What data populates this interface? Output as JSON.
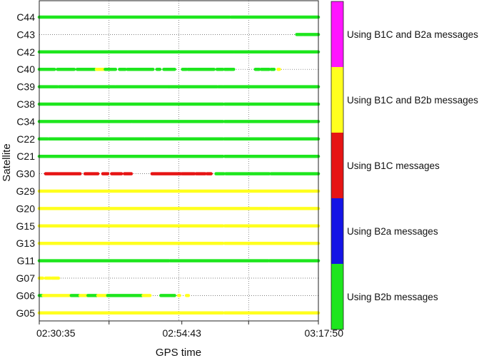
{
  "chart_data": {
    "type": "scatter",
    "xlabel": "GPS time",
    "ylabel": "Satellite",
    "x_ticks": [
      "02:30:35",
      "02:54:43",
      "03:17:50"
    ],
    "xlim": [
      "02:30:35",
      "03:17:50"
    ],
    "satellites": [
      "C44",
      "C43",
      "C42",
      "C40",
      "C39",
      "C38",
      "C34",
      "C22",
      "C21",
      "G30",
      "G29",
      "G20",
      "G15",
      "G13",
      "G11",
      "G07",
      "G06",
      "G05"
    ],
    "grid": "dotted horizontal at each satellite, dotted vertical at intermediate times",
    "colors": {
      "B2b": "#1ee61e",
      "B2a": "#1414e6",
      "B1C": "#e61414",
      "B1C_B2b": "#ffff1e",
      "B1C_B2a": "#ff14ff"
    },
    "legend": [
      {
        "label": "Using B1C and B2a messages",
        "color": "#ff14ff"
      },
      {
        "label": "Using B1C and B2b messages",
        "color": "#ffff1e"
      },
      {
        "label": "Using B1C messages",
        "color": "#e61414"
      },
      {
        "label": "Using B2a messages",
        "color": "#1414e6"
      },
      {
        "label": "Using B2b messages",
        "color": "#1ee61e"
      }
    ],
    "series": [
      {
        "sat": "C44",
        "segments": [
          {
            "start": "02:30:35",
            "end": "02:53:30",
            "mode": "B2b"
          },
          {
            "start": "02:53:35",
            "end": "03:02:50",
            "mode": "B2b"
          },
          {
            "start": "03:03:05",
            "end": "03:17:50",
            "mode": "B2b"
          }
        ]
      },
      {
        "sat": "C43",
        "segments": [
          {
            "start": "03:14:10",
            "end": "03:15:10",
            "mode": "B2b"
          },
          {
            "start": "03:15:20",
            "end": "03:17:50",
            "mode": "B2b"
          }
        ]
      },
      {
        "sat": "C42",
        "segments": [
          {
            "start": "02:30:35",
            "end": "02:34:30",
            "mode": "B2b"
          },
          {
            "start": "02:34:35",
            "end": "02:36:50",
            "mode": "B2b"
          },
          {
            "start": "02:37:00",
            "end": "02:45:30",
            "mode": "B2b"
          },
          {
            "start": "02:45:40",
            "end": "02:53:30",
            "mode": "B2b"
          },
          {
            "start": "02:53:40",
            "end": "03:03:30",
            "mode": "B2b"
          },
          {
            "start": "03:03:40",
            "end": "03:09:30",
            "mode": "B2b"
          },
          {
            "start": "03:09:40",
            "end": "03:17:50",
            "mode": "B2b"
          }
        ]
      },
      {
        "sat": "C40",
        "segments": [
          {
            "start": "02:30:35",
            "end": "02:33:10",
            "mode": "B2b"
          },
          {
            "start": "02:33:40",
            "end": "02:36:30",
            "mode": "B2b"
          },
          {
            "start": "02:37:00",
            "end": "02:40:00",
            "mode": "B2b"
          },
          {
            "start": "02:40:15",
            "end": "02:41:40",
            "mode": "B1C_B2b"
          },
          {
            "start": "02:41:45",
            "end": "02:43:30",
            "mode": "B2b"
          },
          {
            "start": "02:44:10",
            "end": "02:45:10",
            "mode": "B2b"
          },
          {
            "start": "02:45:30",
            "end": "02:49:50",
            "mode": "B2b"
          },
          {
            "start": "02:50:30",
            "end": "02:51:00",
            "mode": "B2b"
          },
          {
            "start": "02:51:40",
            "end": "02:53:30",
            "mode": "B2b"
          },
          {
            "start": "02:54:50",
            "end": "02:55:30",
            "mode": "B2b"
          },
          {
            "start": "02:55:45",
            "end": "03:00:10",
            "mode": "B2b"
          },
          {
            "start": "03:00:40",
            "end": "03:01:40",
            "mode": "B2b"
          },
          {
            "start": "03:02:00",
            "end": "03:02:40",
            "mode": "B2b"
          },
          {
            "start": "03:02:50",
            "end": "03:03:30",
            "mode": "B2b"
          },
          {
            "start": "03:07:10",
            "end": "03:07:50",
            "mode": "B2b"
          },
          {
            "start": "03:08:10",
            "end": "03:09:30",
            "mode": "B2b"
          },
          {
            "start": "03:09:50",
            "end": "03:10:20",
            "mode": "B2b"
          },
          {
            "start": "03:11:00",
            "end": "03:11:15",
            "mode": "B1C_B2b"
          }
        ]
      },
      {
        "sat": "C39",
        "segments": [
          {
            "start": "02:30:35",
            "end": "02:33:40",
            "mode": "B2b"
          },
          {
            "start": "02:33:55",
            "end": "02:36:20",
            "mode": "B2b"
          },
          {
            "start": "02:36:30",
            "end": "02:43:20",
            "mode": "B2b"
          },
          {
            "start": "02:43:30",
            "end": "02:52:30",
            "mode": "B2b"
          },
          {
            "start": "02:52:35",
            "end": "02:53:50",
            "mode": "B2b"
          },
          {
            "start": "02:54:00",
            "end": "03:00:40",
            "mode": "B2b"
          },
          {
            "start": "03:00:55",
            "end": "03:01:40",
            "mode": "B2b"
          },
          {
            "start": "03:01:50",
            "end": "03:17:50",
            "mode": "B2b"
          }
        ]
      },
      {
        "sat": "C38",
        "segments": [
          {
            "start": "02:30:35",
            "end": "03:01:40",
            "mode": "B2b"
          },
          {
            "start": "03:02:00",
            "end": "03:17:50",
            "mode": "B2b"
          }
        ]
      },
      {
        "sat": "C34",
        "segments": [
          {
            "start": "02:30:35",
            "end": "02:46:10",
            "mode": "B2b"
          },
          {
            "start": "02:46:20",
            "end": "03:01:40",
            "mode": "B2b"
          },
          {
            "start": "03:02:00",
            "end": "03:17:50",
            "mode": "B2b"
          }
        ]
      },
      {
        "sat": "C22",
        "segments": [
          {
            "start": "02:30:35",
            "end": "02:32:00",
            "mode": "B2b"
          },
          {
            "start": "02:32:15",
            "end": "02:41:50",
            "mode": "B2b"
          },
          {
            "start": "02:42:00",
            "end": "02:48:20",
            "mode": "B2b"
          },
          {
            "start": "02:48:30",
            "end": "02:53:50",
            "mode": "B2b"
          },
          {
            "start": "02:54:00",
            "end": "03:01:40",
            "mode": "B2b"
          },
          {
            "start": "03:01:55",
            "end": "03:07:50",
            "mode": "B2b"
          },
          {
            "start": "03:08:00",
            "end": "03:17:50",
            "mode": "B2b"
          }
        ]
      },
      {
        "sat": "C21",
        "segments": [
          {
            "start": "02:30:35",
            "end": "03:01:40",
            "mode": "B2b"
          },
          {
            "start": "03:02:00",
            "end": "03:17:50",
            "mode": "B2b"
          }
        ]
      },
      {
        "sat": "G30",
        "segments": [
          {
            "start": "02:31:40",
            "end": "02:33:50",
            "mode": "B1C"
          },
          {
            "start": "02:34:00",
            "end": "02:37:30",
            "mode": "B1C"
          },
          {
            "start": "02:38:20",
            "end": "02:40:30",
            "mode": "B1C"
          },
          {
            "start": "02:41:20",
            "end": "02:42:10",
            "mode": "B1C"
          },
          {
            "start": "02:42:50",
            "end": "02:44:30",
            "mode": "B1C"
          },
          {
            "start": "02:45:00",
            "end": "02:46:10",
            "mode": "B1C"
          },
          {
            "start": "02:49:40",
            "end": "02:54:30",
            "mode": "B1C"
          },
          {
            "start": "02:54:45",
            "end": "02:56:50",
            "mode": "B1C"
          },
          {
            "start": "02:57:10",
            "end": "02:58:40",
            "mode": "B1C"
          },
          {
            "start": "02:59:00",
            "end": "02:59:40",
            "mode": "B1C"
          },
          {
            "start": "03:00:30",
            "end": "03:01:50",
            "mode": "B2b"
          },
          {
            "start": "03:02:10",
            "end": "03:06:50",
            "mode": "B2b"
          },
          {
            "start": "03:07:00",
            "end": "03:09:30",
            "mode": "B2b"
          },
          {
            "start": "03:09:50",
            "end": "03:12:50",
            "mode": "B2b"
          },
          {
            "start": "03:13:00",
            "end": "03:17:50",
            "mode": "B2b"
          }
        ]
      },
      {
        "sat": "G29",
        "segments": [
          {
            "start": "02:30:35",
            "end": "03:17:50",
            "mode": "B1C_B2b"
          }
        ]
      },
      {
        "sat": "G20",
        "segments": [
          {
            "start": "02:30:35",
            "end": "03:09:20",
            "mode": "B1C_B2b"
          },
          {
            "start": "03:09:35",
            "end": "03:17:50",
            "mode": "B1C_B2b"
          }
        ]
      },
      {
        "sat": "G15",
        "segments": [
          {
            "start": "02:30:35",
            "end": "03:01:40",
            "mode": "B1C_B2b"
          },
          {
            "start": "03:02:00",
            "end": "03:17:50",
            "mode": "B1C_B2b"
          }
        ]
      },
      {
        "sat": "G13",
        "segments": [
          {
            "start": "02:30:35",
            "end": "03:01:40",
            "mode": "B1C_B2b"
          },
          {
            "start": "03:02:00",
            "end": "03:17:50",
            "mode": "B1C_B2b"
          }
        ]
      },
      {
        "sat": "G11",
        "segments": [
          {
            "start": "02:30:35",
            "end": "02:52:30",
            "mode": "B2b"
          },
          {
            "start": "02:52:45",
            "end": "03:09:20",
            "mode": "B2b"
          },
          {
            "start": "03:09:35",
            "end": "03:17:50",
            "mode": "B2b"
          }
        ]
      },
      {
        "sat": "G07",
        "segments": [
          {
            "start": "02:30:35",
            "end": "02:31:10",
            "mode": "B1C_B2b"
          },
          {
            "start": "02:31:40",
            "end": "02:32:30",
            "mode": "B1C_B2b"
          },
          {
            "start": "02:32:45",
            "end": "02:33:50",
            "mode": "B1C_B2b"
          }
        ]
      },
      {
        "sat": "G06",
        "segments": [
          {
            "start": "02:30:35",
            "end": "02:31:10",
            "mode": "B2b"
          },
          {
            "start": "02:31:15",
            "end": "02:35:50",
            "mode": "B1C_B2b"
          },
          {
            "start": "02:36:00",
            "end": "02:37:20",
            "mode": "B2b"
          },
          {
            "start": "02:37:30",
            "end": "02:38:40",
            "mode": "B1C_B2b"
          },
          {
            "start": "02:38:50",
            "end": "02:40:20",
            "mode": "B2b"
          },
          {
            "start": "02:40:30",
            "end": "02:42:00",
            "mode": "B1C_B2b"
          },
          {
            "start": "02:42:10",
            "end": "02:48:00",
            "mode": "B2b"
          },
          {
            "start": "02:48:10",
            "end": "02:49:20",
            "mode": "B1C_B2b"
          },
          {
            "start": "02:51:10",
            "end": "02:52:40",
            "mode": "B2b"
          },
          {
            "start": "02:52:50",
            "end": "02:53:30",
            "mode": "B2b"
          },
          {
            "start": "02:54:10",
            "end": "02:54:20",
            "mode": "B1C_B2b"
          },
          {
            "start": "02:55:30",
            "end": "02:55:50",
            "mode": "B1C_B2b"
          }
        ]
      },
      {
        "sat": "G05",
        "segments": [
          {
            "start": "02:30:35",
            "end": "03:01:40",
            "mode": "B1C_B2b"
          },
          {
            "start": "03:02:00",
            "end": "03:17:50",
            "mode": "B1C_B2b"
          }
        ]
      }
    ]
  }
}
